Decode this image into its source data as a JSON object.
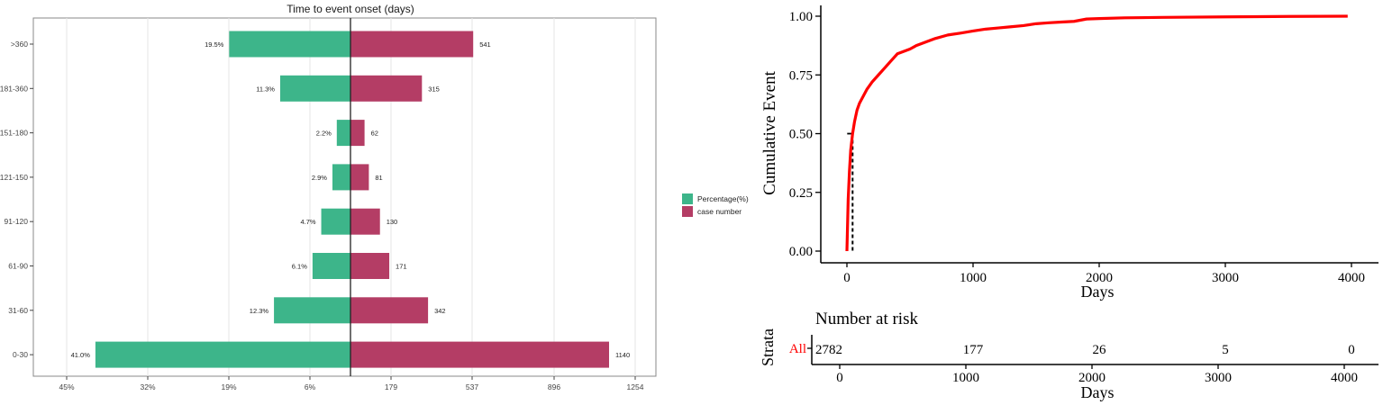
{
  "chart_data": [
    {
      "type": "bar",
      "orientation": "horizontal-diverging",
      "title": "Time to event onset (days)",
      "categories": [
        ">360",
        "181-360",
        "151-180",
        "121-150",
        "91-120",
        "61-90",
        "31-60",
        "0-30"
      ],
      "series": [
        {
          "name": "Percentage(%)",
          "color": "#3db58a",
          "values": [
            19.5,
            11.3,
            2.2,
            2.9,
            4.7,
            6.1,
            12.3,
            41.0
          ],
          "labels": [
            "19.5%",
            "11.3%",
            "2.2%",
            "2.9%",
            "4.7%",
            "6.1%",
            "12.3%",
            "41.0%"
          ]
        },
        {
          "name": "case number",
          "color": "#b43d65",
          "values": [
            541,
            315,
            62,
            81,
            130,
            171,
            342,
            1140
          ],
          "labels": [
            "541",
            "315",
            "62",
            "81",
            "130",
            "171",
            "342",
            "1140"
          ]
        }
      ],
      "x_ticks_left": [
        "45%",
        "32%",
        "19%",
        "6%"
      ],
      "x_ticks_right": [
        "179",
        "537",
        "896",
        "1254"
      ],
      "legend_position": "right",
      "grid": true
    },
    {
      "type": "line",
      "subtype": "cumulative-incidence",
      "xlabel": "Days",
      "ylabel": "Cumulative Event",
      "color": "#ff0000",
      "x_ticks": [
        "0",
        "1000",
        "2000",
        "3000",
        "4000"
      ],
      "y_ticks": [
        "0.00",
        "0.25",
        "0.50",
        "0.75",
        "1.00"
      ],
      "xlim": [
        0,
        4000
      ],
      "ylim": [
        0,
        1
      ],
      "median_days": 45,
      "x": [
        0,
        10,
        20,
        30,
        45,
        60,
        80,
        100,
        130,
        160,
        200,
        250,
        300,
        350,
        400,
        450,
        500,
        550,
        600,
        700,
        800,
        900,
        1000,
        1100,
        1200,
        1300,
        1400,
        1500,
        1600,
        1700,
        1800,
        1900,
        2000,
        2200,
        2500,
        3000,
        3500,
        3970
      ],
      "y": [
        0.0,
        0.22,
        0.34,
        0.43,
        0.5,
        0.55,
        0.6,
        0.63,
        0.66,
        0.69,
        0.72,
        0.75,
        0.78,
        0.81,
        0.84,
        0.85,
        0.86,
        0.875,
        0.885,
        0.905,
        0.92,
        0.928,
        0.937,
        0.945,
        0.95,
        0.955,
        0.96,
        0.968,
        0.972,
        0.975,
        0.978,
        0.988,
        0.99,
        0.993,
        0.995,
        0.997,
        0.999,
        1.0
      ],
      "risk_table": {
        "title": "Number at risk",
        "ylabel": "Strata",
        "strata": "All",
        "times": [
          "0",
          "1000",
          "2000",
          "3000",
          "4000"
        ],
        "values": [
          "2782",
          "177",
          "26",
          "5",
          "0"
        ],
        "xlabel": "Days"
      }
    }
  ]
}
